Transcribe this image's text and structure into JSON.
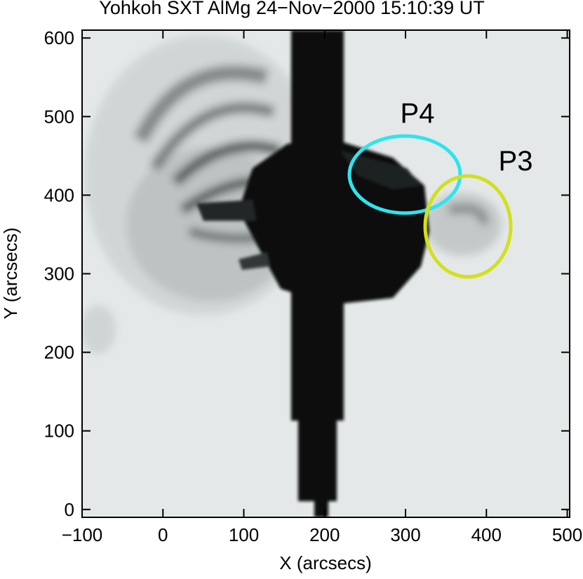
{
  "chart_data": {
    "type": "image",
    "title": "Yohkoh SXT AlMg 24−Nov−2000 15:10:39 UT",
    "x_label": "X (arcsecs)",
    "y_label": "Y (arcsecs)",
    "xlim": [
      -100,
      503
    ],
    "ylim": [
      -10,
      610
    ],
    "xticks": [
      {
        "value": -100,
        "label": "−100"
      },
      0,
      100,
      200,
      300,
      400,
      500
    ],
    "yticks": [
      0,
      100,
      200,
      300,
      400,
      500,
      600
    ],
    "annotations": [
      {
        "text": "P4",
        "color": "#2ee4ee"
      },
      {
        "text": "P3",
        "color": "#d2e01c"
      }
    ]
  }
}
